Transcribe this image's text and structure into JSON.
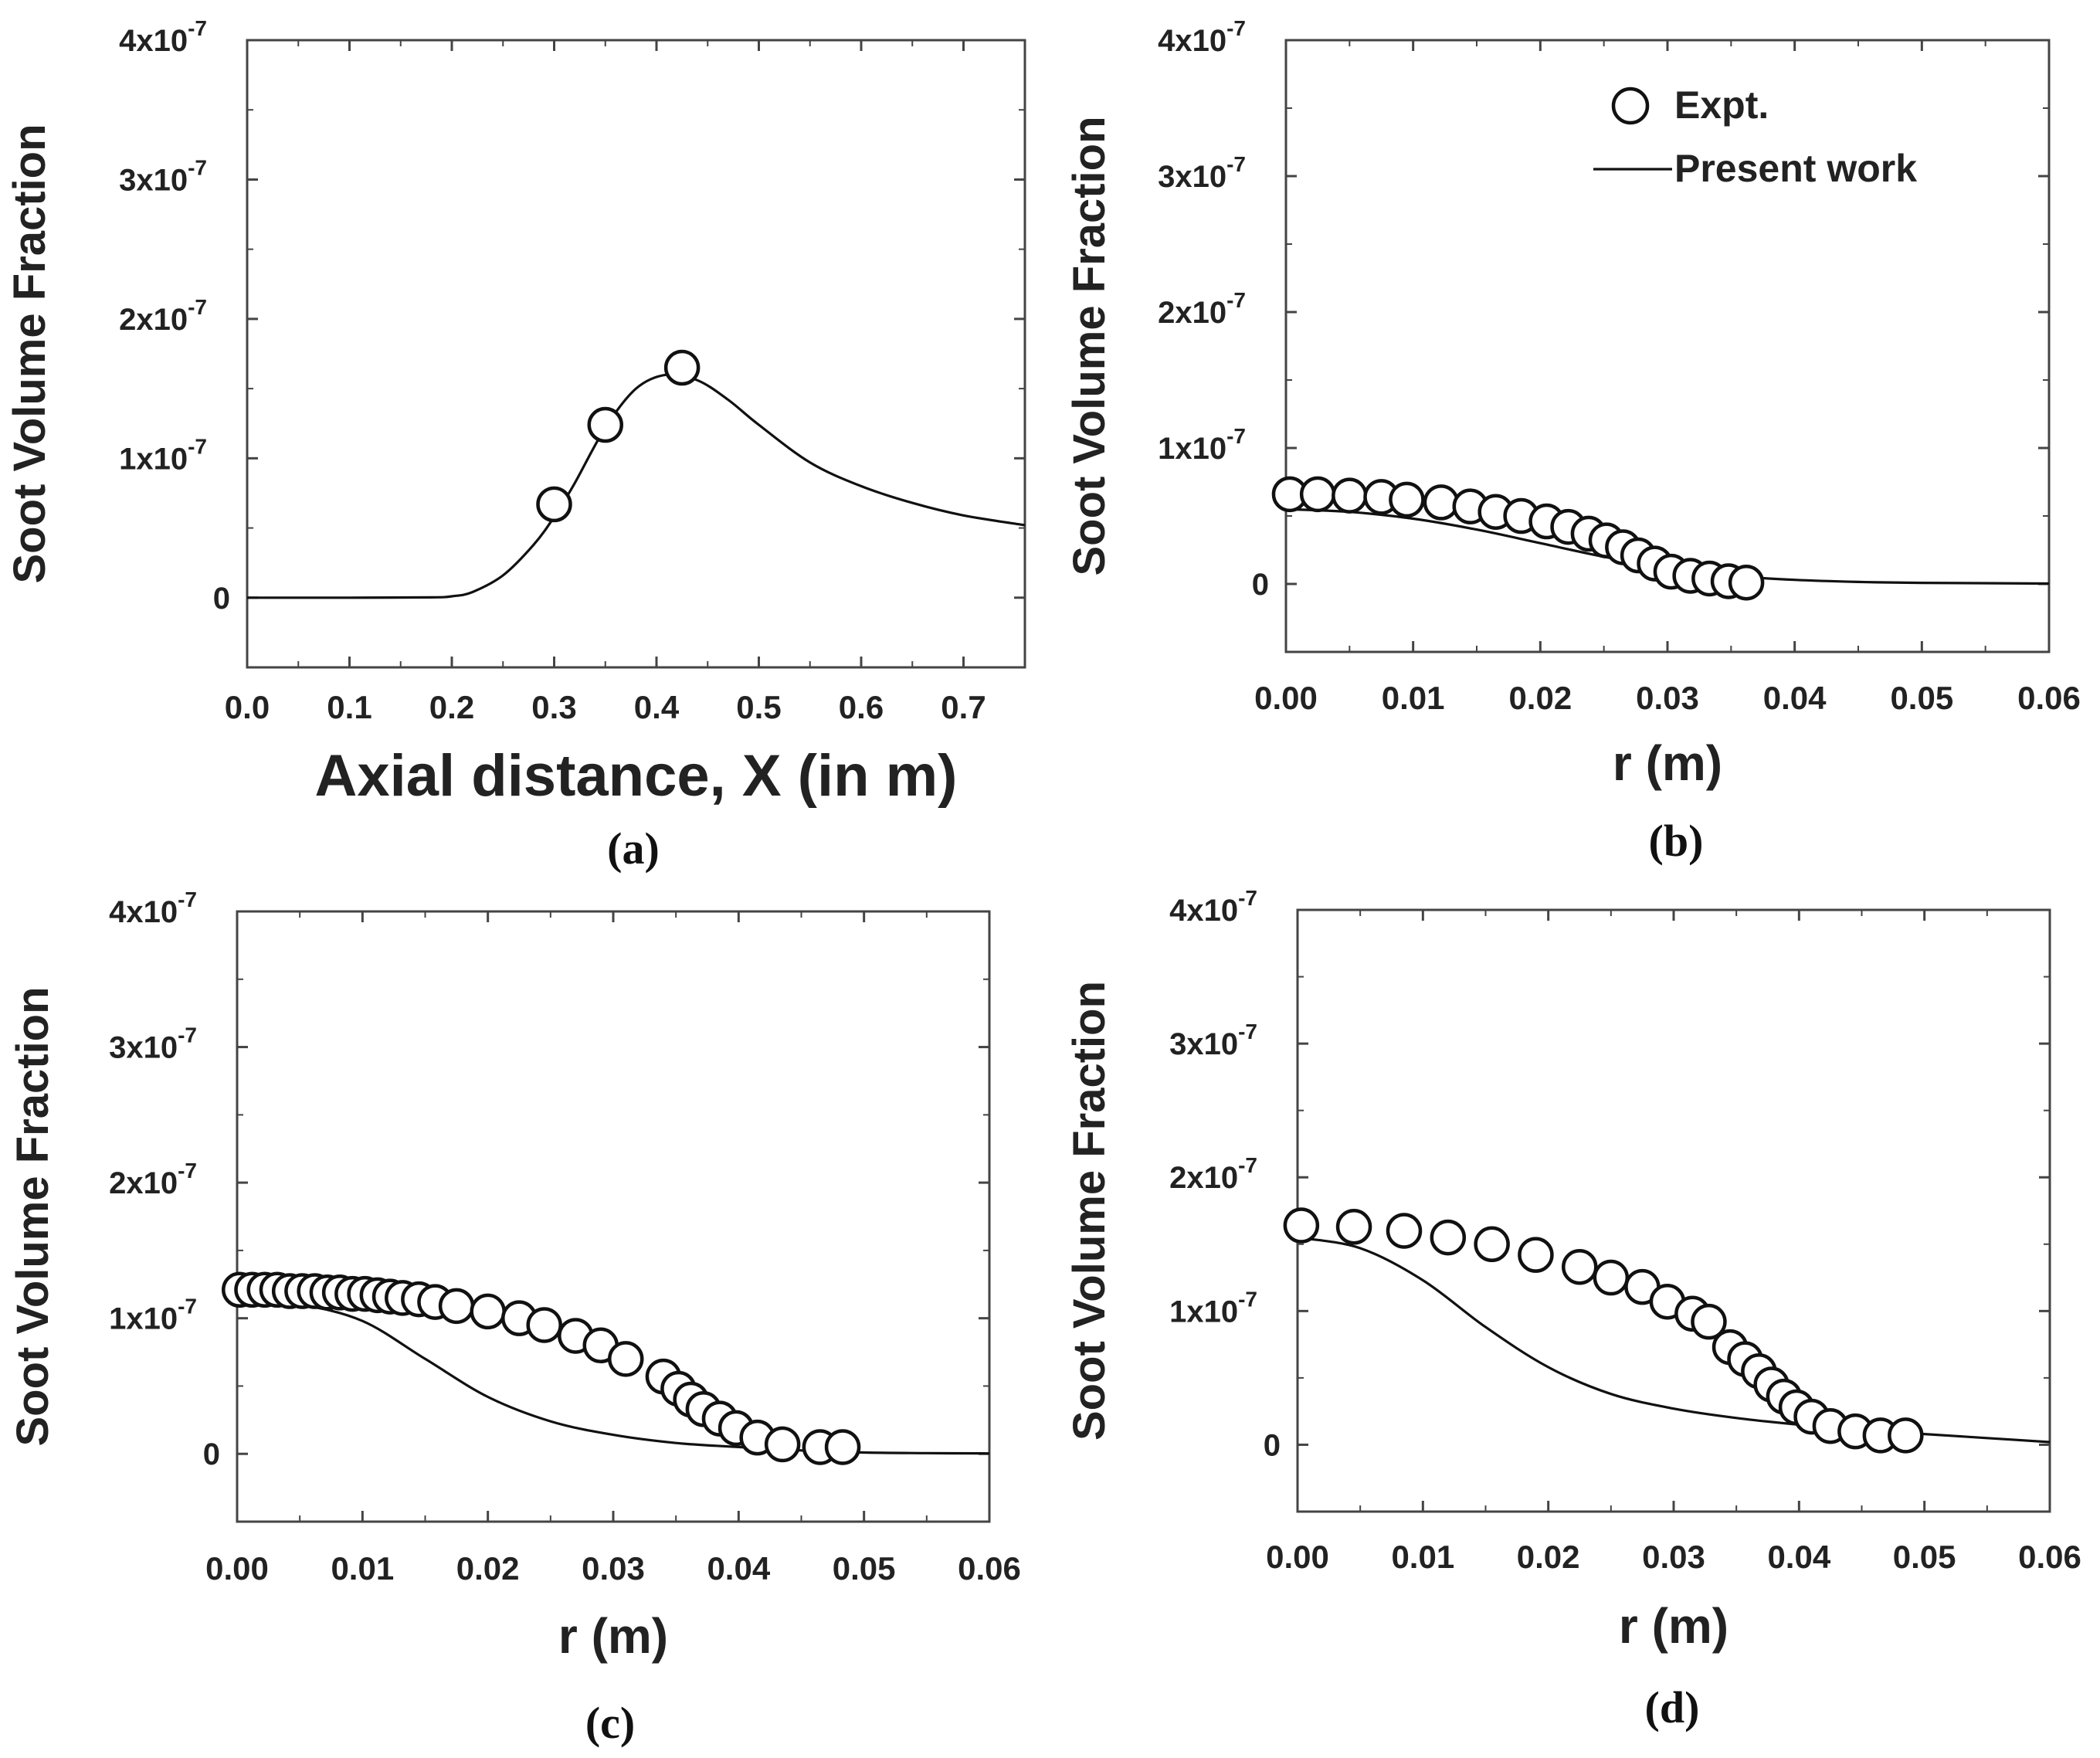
{
  "chart_data": [
    {
      "panel": "(a)",
      "type": "line",
      "xlabel": "Axial distance, X (in m)",
      "ylabel": "Soot Volume Fraction",
      "xlim": [
        0.0,
        0.76
      ],
      "ylim": [
        -5e-08,
        4e-07
      ],
      "xticks": [
        "0.0",
        "0.1",
        "0.2",
        "0.3",
        "0.4",
        "0.5",
        "0.6",
        "0.7"
      ],
      "yticks": [
        "0",
        "1x10",
        "2x10",
        "3x10",
        "4x10"
      ],
      "ytick_exp": "-7",
      "series": [
        {
          "name": "Expt.",
          "x": [
            0.3,
            0.35,
            0.425
          ],
          "y": [
            6.7e-08,
            1.24e-07,
            1.65e-07
          ]
        },
        {
          "name": "Present work",
          "x": [
            0.0,
            0.1,
            0.18,
            0.2,
            0.22,
            0.25,
            0.28,
            0.3,
            0.32,
            0.35,
            0.38,
            0.41,
            0.44,
            0.47,
            0.5,
            0.55,
            0.6,
            0.65,
            0.7,
            0.76
          ],
          "y": [
            0,
            0,
            2e-10,
            1e-09,
            4e-09,
            1.6e-08,
            3.8e-08,
            5.8e-08,
            8.2e-08,
            1.22e-07,
            1.5e-07,
            1.6e-07,
            1.56e-07,
            1.42e-07,
            1.24e-07,
            9.7e-08,
            8e-08,
            6.8e-08,
            5.9e-08,
            5.2e-08
          ]
        }
      ]
    },
    {
      "panel": "(b)",
      "type": "line",
      "xlabel": "r (m)",
      "ylabel": "Soot Volume Fraction",
      "xlim": [
        0.0,
        0.06
      ],
      "ylim": [
        -5e-08,
        4e-07
      ],
      "xticks": [
        "0.00",
        "0.01",
        "0.02",
        "0.03",
        "0.04",
        "0.05",
        "0.06"
      ],
      "yticks": [
        "0",
        "1x10",
        "2x10",
        "3x10",
        "4x10"
      ],
      "ytick_exp": "-7",
      "legend": {
        "position": "top-right",
        "entries": [
          "Expt.",
          "Present work"
        ]
      },
      "series": [
        {
          "name": "Expt.",
          "x": [
            0.0003,
            0.0025,
            0.005,
            0.0075,
            0.0095,
            0.0122,
            0.0145,
            0.0165,
            0.0185,
            0.0205,
            0.0222,
            0.0238,
            0.0252,
            0.0265,
            0.0277,
            0.029,
            0.0303,
            0.0318,
            0.0333,
            0.0348,
            0.0362
          ],
          "y": [
            6.6e-08,
            6.6e-08,
            6.5e-08,
            6.4e-08,
            6.2e-08,
            6e-08,
            5.7e-08,
            5.3e-08,
            5e-08,
            4.6e-08,
            4.2e-08,
            3.7e-08,
            3.2e-08,
            2.7e-08,
            2.1e-08,
            1.5e-08,
            9e-09,
            6e-09,
            4e-09,
            2e-09,
            1e-09
          ]
        },
        {
          "name": "Present work",
          "x": [
            0.0,
            0.005,
            0.01,
            0.015,
            0.02,
            0.025,
            0.03,
            0.035,
            0.04,
            0.045,
            0.05,
            0.06
          ],
          "y": [
            5.5e-08,
            5.3e-08,
            4.8e-08,
            4e-08,
            3e-08,
            2e-08,
            1.2e-08,
            6e-09,
            3e-09,
            1.5e-09,
            8e-10,
            3e-10
          ]
        }
      ]
    },
    {
      "panel": "(c)",
      "type": "line",
      "xlabel": "r (m)",
      "ylabel": "Soot Volume Fraction",
      "xlim": [
        0.0,
        0.06
      ],
      "ylim": [
        -5e-08,
        4e-07
      ],
      "xticks": [
        "0.00",
        "0.01",
        "0.02",
        "0.03",
        "0.04",
        "0.05",
        "0.06"
      ],
      "yticks": [
        "0",
        "1x10",
        "2x10",
        "3x10",
        "4x10"
      ],
      "ytick_exp": "-7",
      "series": [
        {
          "name": "Expt.",
          "x": [
            0.0002,
            0.0012,
            0.0022,
            0.0032,
            0.0042,
            0.0052,
            0.0062,
            0.0072,
            0.0082,
            0.0092,
            0.0102,
            0.0112,
            0.0122,
            0.0132,
            0.0145,
            0.0158,
            0.0175,
            0.02,
            0.0225,
            0.0245,
            0.027,
            0.029,
            0.031,
            0.034,
            0.0352,
            0.0362,
            0.0372,
            0.0385,
            0.0398,
            0.0415,
            0.0435,
            0.0465,
            0.0483
          ],
          "y": [
            1.21e-07,
            1.21e-07,
            1.21e-07,
            1.21e-07,
            1.2e-07,
            1.2e-07,
            1.2e-07,
            1.19e-07,
            1.19e-07,
            1.18e-07,
            1.18e-07,
            1.17e-07,
            1.16e-07,
            1.15e-07,
            1.14e-07,
            1.12e-07,
            1.09e-07,
            1.05e-07,
            1e-07,
            9.5e-08,
            8.7e-08,
            8e-08,
            7e-08,
            5.7e-08,
            4.8e-08,
            4e-08,
            3.3e-08,
            2.6e-08,
            1.9e-08,
            1.2e-08,
            7e-09,
            5e-09,
            5e-09
          ]
        },
        {
          "name": "Present work",
          "x": [
            0.0,
            0.005,
            0.01,
            0.015,
            0.02,
            0.025,
            0.03,
            0.035,
            0.04,
            0.045,
            0.05,
            0.055,
            0.06
          ],
          "y": [
            1.13e-07,
            1.1e-07,
            9.8e-08,
            7e-08,
            4.2e-08,
            2.4e-08,
            1.4e-08,
            8e-09,
            5e-09,
            2.5e-09,
            1e-09,
            5e-10,
            3e-10
          ]
        }
      ]
    },
    {
      "panel": "(d)",
      "type": "line",
      "xlabel": "r (m)",
      "ylabel": "Soot Volume Fraction",
      "xlim": [
        0.0,
        0.06
      ],
      "ylim": [
        -5e-08,
        4e-07
      ],
      "xticks": [
        "0.00",
        "0.01",
        "0.02",
        "0.03",
        "0.04",
        "0.05",
        "0.06"
      ],
      "yticks": [
        "0",
        "1x10",
        "2x10",
        "3x10",
        "4x10"
      ],
      "ytick_exp": "-7",
      "series": [
        {
          "name": "Expt.",
          "x": [
            0.0003,
            0.0045,
            0.0085,
            0.012,
            0.0155,
            0.019,
            0.0225,
            0.025,
            0.0275,
            0.0295,
            0.0315,
            0.0328,
            0.0345,
            0.0357,
            0.0368,
            0.0378,
            0.0388,
            0.0398,
            0.041,
            0.0425,
            0.0445,
            0.0465,
            0.0485
          ],
          "y": [
            1.64e-07,
            1.63e-07,
            1.6e-07,
            1.55e-07,
            1.5e-07,
            1.42e-07,
            1.33e-07,
            1.25e-07,
            1.18e-07,
            1.07e-07,
            9.8e-08,
            9.2e-08,
            7.3e-08,
            6.4e-08,
            5.5e-08,
            4.5e-08,
            3.6e-08,
            2.8e-08,
            2.1e-08,
            1.4e-08,
            1e-08,
            7e-09,
            7e-09
          ]
        },
        {
          "name": "Present work",
          "x": [
            0.0,
            0.005,
            0.01,
            0.015,
            0.02,
            0.025,
            0.03,
            0.035,
            0.04,
            0.045,
            0.05,
            0.055,
            0.06
          ],
          "y": [
            1.55e-07,
            1.47e-07,
            1.23e-07,
            8.8e-08,
            5.8e-08,
            3.8e-08,
            2.7e-08,
            2e-08,
            1.5e-08,
            1.1e-08,
            8e-09,
            5e-09,
            2e-09
          ]
        }
      ]
    }
  ]
}
